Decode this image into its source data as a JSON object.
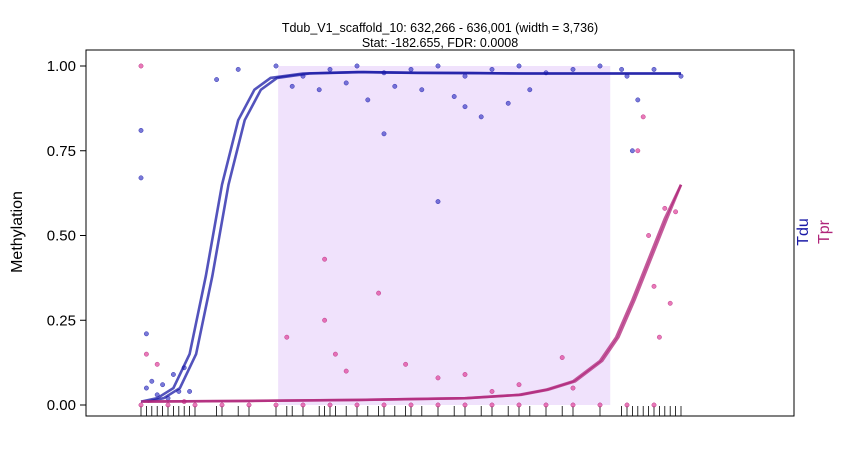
{
  "chart_data": {
    "type": "scatter",
    "title": "Tdub_V1_scaffold_10: 632,266 - 636,001 (width = 3,736)",
    "subtitle": "Stat: -182.655, FDR: 0.0008",
    "ylabel": "Methylation",
    "ylim": [
      0,
      1
    ],
    "yticks": [
      "0.00",
      "0.25",
      "0.50",
      "0.75",
      "1.00"
    ],
    "yticks_values": [
      0,
      0.25,
      0.5,
      0.75,
      1.0
    ],
    "dmr_region": {
      "start_fraction": 0.254,
      "end_fraction": 0.869
    },
    "legend_placement": "right",
    "series": [
      {
        "name": "Tdu",
        "color": "#1a1aa6",
        "point_color": "#4040c8",
        "smooth": [
          [
            0.0,
            0.01
          ],
          [
            0.03,
            0.02
          ],
          [
            0.06,
            0.05
          ],
          [
            0.09,
            0.15
          ],
          [
            0.12,
            0.38
          ],
          [
            0.15,
            0.65
          ],
          [
            0.18,
            0.84
          ],
          [
            0.21,
            0.93
          ],
          [
            0.24,
            0.965
          ],
          [
            0.3,
            0.978
          ],
          [
            0.4,
            0.982
          ],
          [
            0.5,
            0.98
          ],
          [
            0.6,
            0.979
          ],
          [
            0.7,
            0.978
          ],
          [
            0.8,
            0.978
          ],
          [
            0.9,
            0.978
          ],
          [
            1.0,
            0.978
          ]
        ],
        "points": [
          [
            0.0,
            0.67
          ],
          [
            0.0,
            0.81
          ],
          [
            0.01,
            0.21
          ],
          [
            0.01,
            0.05
          ],
          [
            0.02,
            0.07
          ],
          [
            0.03,
            0.03
          ],
          [
            0.04,
            0.06
          ],
          [
            0.05,
            0.02
          ],
          [
            0.06,
            0.09
          ],
          [
            0.07,
            0.04
          ],
          [
            0.08,
            0.11
          ],
          [
            0.09,
            0.04
          ],
          [
            0.14,
            0.96
          ],
          [
            0.18,
            0.99
          ],
          [
            0.25,
            1.0
          ],
          [
            0.3,
            0.97
          ],
          [
            0.35,
            0.99
          ],
          [
            0.4,
            1.0
          ],
          [
            0.45,
            0.98
          ],
          [
            0.5,
            0.99
          ],
          [
            0.55,
            1.0
          ],
          [
            0.6,
            0.97
          ],
          [
            0.65,
            0.99
          ],
          [
            0.7,
            1.0
          ],
          [
            0.75,
            0.98
          ],
          [
            0.8,
            0.99
          ],
          [
            0.85,
            1.0
          ],
          [
            0.9,
            0.97
          ],
          [
            0.95,
            0.99
          ],
          [
            1.0,
            0.97
          ],
          [
            0.38,
            0.95
          ],
          [
            0.42,
            0.9
          ],
          [
            0.47,
            0.94
          ],
          [
            0.52,
            0.93
          ],
          [
            0.58,
            0.91
          ],
          [
            0.63,
            0.85
          ],
          [
            0.45,
            0.8
          ],
          [
            0.68,
            0.89
          ],
          [
            0.72,
            0.93
          ],
          [
            0.6,
            0.88
          ],
          [
            0.55,
            0.6
          ],
          [
            0.33,
            0.93
          ],
          [
            0.28,
            0.94
          ],
          [
            0.91,
            0.75
          ],
          [
            0.92,
            0.9
          ],
          [
            0.89,
            0.99
          ]
        ]
      },
      {
        "name": "Tpr",
        "color": "#b0257a",
        "point_color": "#e0409a",
        "smooth": [
          [
            0.0,
            0.01
          ],
          [
            0.2,
            0.012
          ],
          [
            0.4,
            0.015
          ],
          [
            0.6,
            0.02
          ],
          [
            0.7,
            0.03
          ],
          [
            0.75,
            0.045
          ],
          [
            0.8,
            0.07
          ],
          [
            0.85,
            0.13
          ],
          [
            0.88,
            0.2
          ],
          [
            0.91,
            0.31
          ],
          [
            0.94,
            0.43
          ],
          [
            0.97,
            0.55
          ],
          [
            1.0,
            0.65
          ]
        ],
        "points": [
          [
            0.0,
            1.0
          ],
          [
            0.0,
            0.0
          ],
          [
            0.01,
            0.15
          ],
          [
            0.03,
            0.12
          ],
          [
            0.05,
            0.0
          ],
          [
            0.08,
            0.01
          ],
          [
            0.1,
            0.0
          ],
          [
            0.15,
            0.0
          ],
          [
            0.2,
            0.0
          ],
          [
            0.25,
            0.0
          ],
          [
            0.3,
            0.0
          ],
          [
            0.35,
            0.0
          ],
          [
            0.4,
            0.0
          ],
          [
            0.45,
            0.0
          ],
          [
            0.5,
            0.0
          ],
          [
            0.55,
            0.0
          ],
          [
            0.6,
            0.0
          ],
          [
            0.65,
            0.0
          ],
          [
            0.7,
            0.0
          ],
          [
            0.75,
            0.0
          ],
          [
            0.8,
            0.0
          ],
          [
            0.85,
            0.0
          ],
          [
            0.9,
            0.0
          ],
          [
            0.95,
            0.0
          ],
          [
            0.27,
            0.2
          ],
          [
            0.34,
            0.25
          ],
          [
            0.34,
            0.43
          ],
          [
            0.36,
            0.15
          ],
          [
            0.38,
            0.1
          ],
          [
            0.44,
            0.33
          ],
          [
            0.49,
            0.12
          ],
          [
            0.55,
            0.08
          ],
          [
            0.6,
            0.09
          ],
          [
            0.65,
            0.04
          ],
          [
            0.7,
            0.06
          ],
          [
            0.78,
            0.14
          ],
          [
            0.8,
            0.05
          ],
          [
            0.92,
            0.75
          ],
          [
            0.93,
            0.85
          ],
          [
            0.94,
            0.5
          ],
          [
            0.95,
            0.35
          ],
          [
            0.96,
            0.2
          ],
          [
            0.97,
            0.58
          ],
          [
            0.98,
            0.3
          ],
          [
            0.99,
            0.57
          ]
        ]
      }
    ]
  }
}
